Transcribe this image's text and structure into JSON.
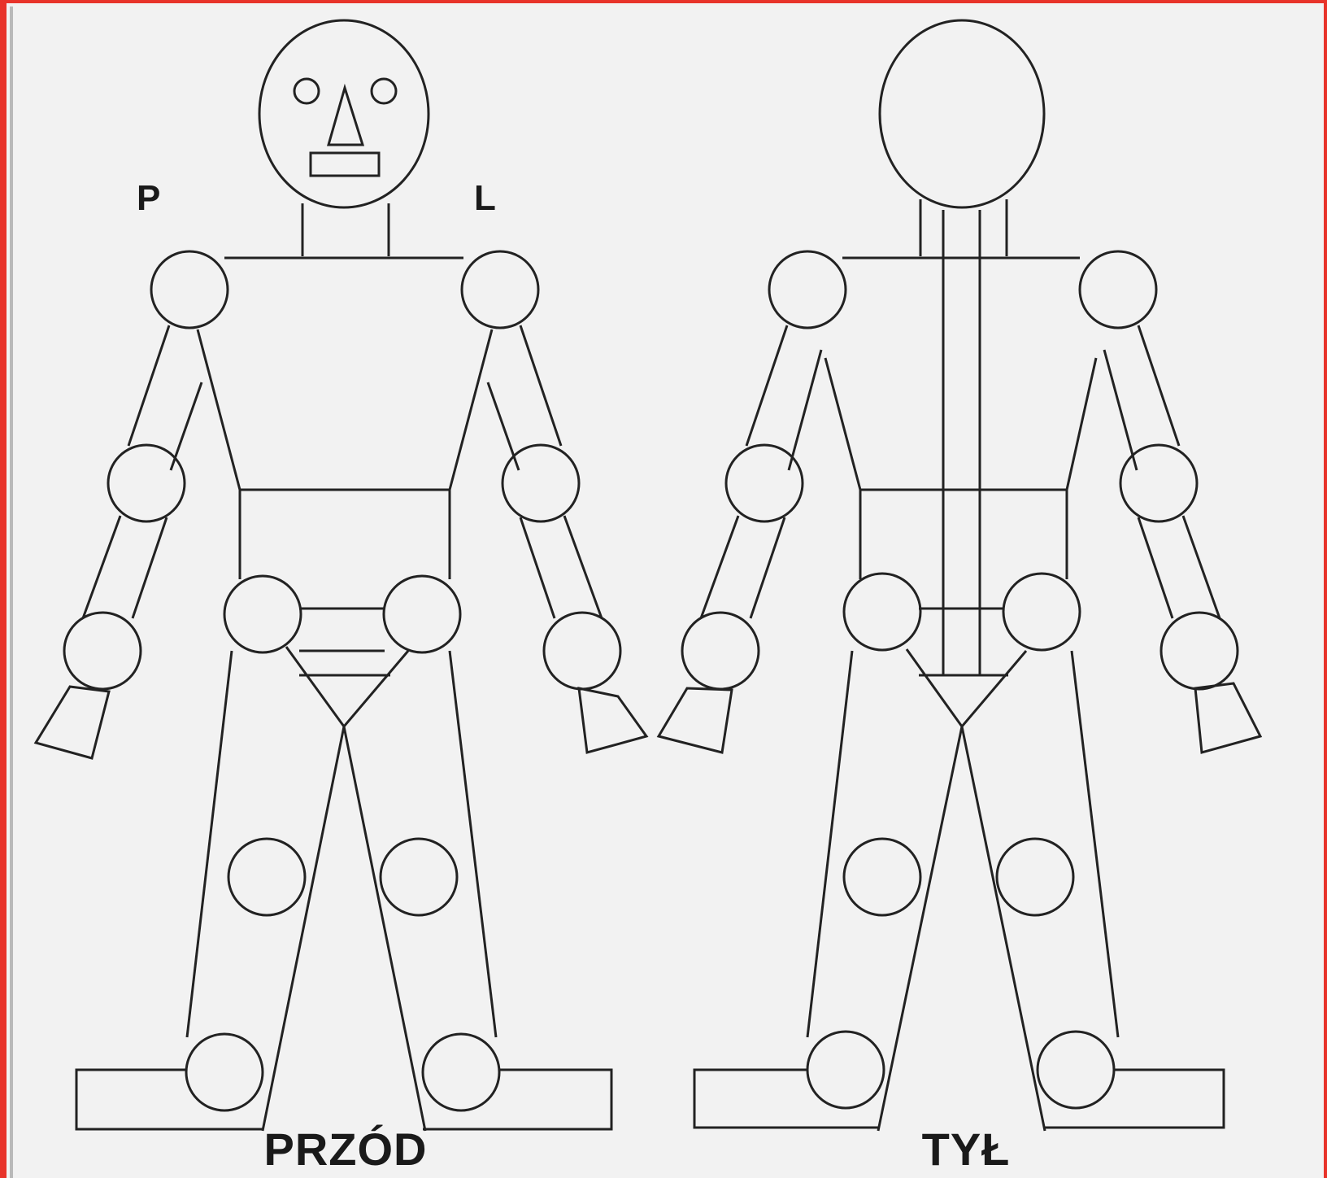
{
  "labels": {
    "right_side": "P",
    "left_side": "L",
    "front_view": "PRZÓD",
    "back_view": "TYŁ"
  },
  "colors": {
    "background": "#f2f2f2",
    "line": "#222222",
    "frame_border": "#e8332a"
  }
}
